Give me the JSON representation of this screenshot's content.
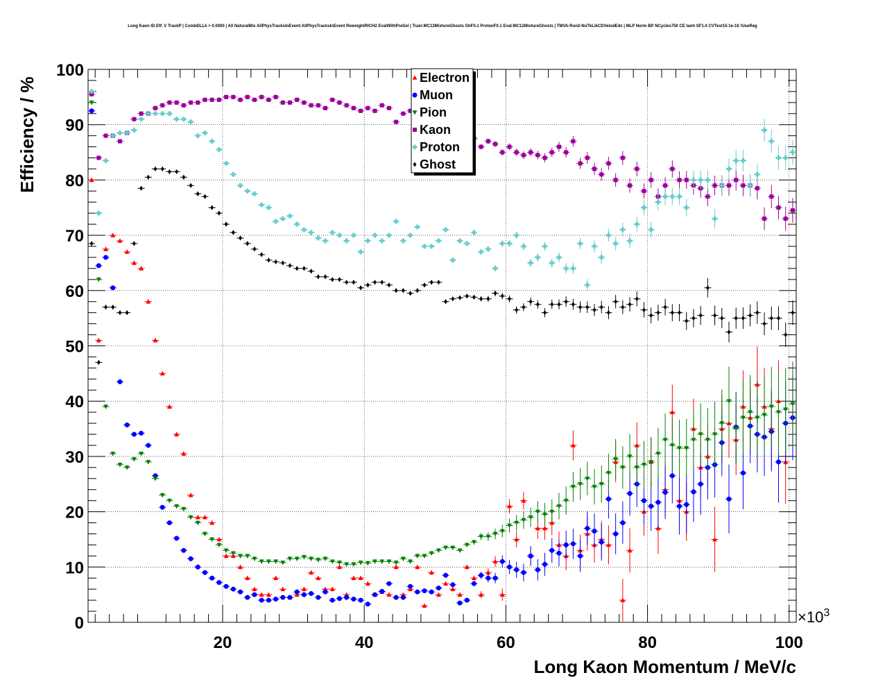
{
  "chart_data": {
    "type": "scatter",
    "title": "Long Kaon ID Eff. V TrackP | CombDLLk > 0.0000 | All NaturalMix AllPhysTracksInEvent:AllPhysTracksInEvent ReweightRICH2 EvalWithPreSel | Train:MC12MixtureGhosts GhF0.1 ProtonF0.1 Eval:MC12MixtureGhosts | TMVA-Run2-NoTkLikCDVelodEdx | MLP Norm BP NCycles750 CE tanh SF1.4 CVTest15:1e-16 !UseReg",
    "xlabel": "Long Kaon Momentum / MeV/c",
    "ylabel": "Efficiency / %",
    "x_multiplier": "×10",
    "x_multiplier_exp": "3",
    "xlim": [
      1,
      101
    ],
    "ylim": [
      0,
      100
    ],
    "xticks": [
      "20",
      "40",
      "60",
      "80",
      "100"
    ],
    "yticks": [
      "0",
      "10",
      "20",
      "30",
      "40",
      "50",
      "60",
      "70",
      "80",
      "90",
      "100"
    ],
    "grid": true,
    "legend_position": "top-center",
    "x_start": 1.5,
    "x_step": 1,
    "series": [
      {
        "name": "Electron",
        "color": "#ff0000",
        "marker": "triangle-up",
        "values": [
          80,
          51,
          67.5,
          70,
          69,
          67,
          65,
          64,
          58,
          51,
          45,
          39,
          34,
          30.5,
          23,
          19,
          19,
          18,
          15,
          12,
          12,
          10,
          8,
          6,
          5,
          5,
          8,
          6,
          4.5,
          5,
          6,
          9,
          8,
          6,
          6,
          10,
          5,
          8,
          8,
          7,
          5,
          5.5,
          5,
          10,
          5,
          6,
          10,
          3,
          9,
          5,
          7,
          6,
          5,
          10,
          8,
          5,
          9,
          11,
          5,
          21,
          15,
          22,
          12,
          17,
          17,
          18,
          14,
          12,
          32,
          13,
          16,
          14,
          15,
          14,
          29,
          4,
          13,
          32,
          20,
          29,
          17,
          24,
          38,
          22,
          20,
          35,
          28,
          30,
          15,
          35,
          36,
          33,
          39,
          37,
          43,
          39,
          35,
          40,
          29
        ]
      },
      {
        "name": "Muon",
        "color": "#0000ff",
        "marker": "circle",
        "values": [
          92.5,
          64.5,
          66,
          60.5,
          43.5,
          35.7,
          34,
          34.2,
          32,
          26.5,
          20.8,
          18,
          15.2,
          13,
          11.5,
          10,
          9,
          8,
          7.2,
          6.5,
          6,
          5.5,
          4.5,
          5,
          4,
          4,
          4.2,
          4.5,
          4.5,
          5.5,
          5,
          5.2,
          4.5,
          5.5,
          4,
          4.3,
          4.5,
          4.2,
          4,
          3.3,
          5,
          5.6,
          7,
          4.5,
          4.5,
          6.5,
          5.5,
          5.7,
          5.5,
          6.2,
          8.5,
          6.8,
          3.5,
          4,
          7,
          8.5,
          8,
          8,
          11,
          10,
          9.5,
          9,
          12,
          9.5,
          10.5,
          13,
          12.5,
          14,
          14.2,
          12,
          17,
          16.5,
          14.5,
          22.3,
          16,
          18,
          23.3,
          25,
          22,
          21,
          21.7,
          23.5,
          26.5,
          21,
          21.3,
          23.6,
          25,
          28,
          28.5,
          32.5,
          22.3,
          35.3,
          27,
          35.5,
          34,
          33.5,
          34.5,
          29,
          36,
          37
        ]
      },
      {
        "name": "Pion",
        "color": "#008000",
        "marker": "triangle-down",
        "values": [
          94,
          62,
          39,
          30.5,
          28.5,
          28,
          29.5,
          30.5,
          29,
          26,
          23,
          22,
          21,
          20.5,
          19,
          18,
          16,
          15,
          14,
          13,
          12.5,
          12,
          12,
          11.5,
          11,
          11,
          11,
          10.8,
          11.5,
          11.5,
          11.8,
          11.5,
          11.3,
          11.5,
          11,
          10.8,
          10.5,
          10.5,
          10.8,
          10.7,
          11,
          11,
          11,
          10.8,
          11.5,
          11,
          12,
          12,
          12.5,
          13,
          13.5,
          13.5,
          13,
          14,
          14.5,
          15.5,
          15.5,
          16,
          16.5,
          17.5,
          18,
          18.5,
          19,
          20,
          19.5,
          20,
          21,
          22,
          24.5,
          25,
          26,
          24.5,
          25,
          27,
          29.5,
          28,
          30,
          28,
          28.5,
          29,
          30.5,
          33,
          32,
          31.5,
          31.5,
          33,
          34,
          33,
          34,
          36,
          40,
          35,
          37,
          38,
          37,
          37.5,
          39,
          38,
          38.5,
          39.5
        ]
      },
      {
        "name": "Kaon",
        "color": "#990099",
        "marker": "square",
        "values": [
          95.5,
          84,
          88,
          88,
          87,
          88.5,
          91,
          92,
          92,
          93,
          93.5,
          94,
          94,
          93.5,
          94,
          94,
          94.5,
          94.5,
          94.5,
          95,
          95,
          94.5,
          95,
          94.5,
          95,
          94.5,
          95,
          94,
          94,
          94.5,
          94,
          93.5,
          93.5,
          93,
          94.5,
          94,
          93.5,
          93,
          92.5,
          93,
          92.5,
          93.5,
          93,
          90.5,
          92,
          92.5,
          93.5,
          93.5,
          90.5,
          88,
          89,
          88,
          88,
          87.5,
          87.5,
          86,
          87,
          86.5,
          85,
          86,
          85,
          84.5,
          85,
          84.5,
          84,
          85,
          86,
          85,
          87,
          83,
          84,
          82,
          81,
          83,
          80,
          84,
          79,
          82,
          78,
          80,
          77,
          79,
          82,
          80,
          80,
          79,
          78.5,
          77,
          79,
          79,
          79,
          80,
          79,
          79,
          78.5,
          73,
          77,
          75,
          73,
          74.5
        ]
      },
      {
        "name": "Proton",
        "color": "#66cccc",
        "marker": "cross",
        "values": [
          96,
          74,
          83.5,
          88,
          88.5,
          88.5,
          89,
          91,
          92,
          92,
          92,
          92,
          91,
          91,
          90.5,
          88,
          88.5,
          87,
          85.5,
          83,
          81,
          79,
          78,
          77.5,
          75.5,
          75,
          72.5,
          73,
          73.5,
          72,
          71,
          70.5,
          69.5,
          69,
          70.5,
          70,
          69,
          70,
          67,
          69,
          70,
          69,
          70,
          72.5,
          69,
          70,
          71.5,
          68,
          68,
          69,
          71,
          65.5,
          69,
          68.5,
          70.5,
          67,
          67.5,
          64,
          68.5,
          68.5,
          70,
          68,
          65,
          66,
          68,
          65,
          66,
          64,
          64,
          68.5,
          61,
          68,
          66,
          70,
          68.5,
          71,
          69,
          72,
          75,
          71,
          76,
          77,
          77,
          77,
          75,
          80,
          80,
          80,
          73,
          79,
          82,
          83.5,
          83.5,
          79,
          81,
          89,
          87,
          84,
          84,
          85
        ]
      },
      {
        "name": "Ghost",
        "color": "#000000",
        "marker": "diamond",
        "values": [
          68.5,
          47,
          57,
          57,
          56,
          56,
          68.5,
          78.5,
          80.5,
          82,
          82,
          81.5,
          81.5,
          80.5,
          79,
          77.5,
          77,
          75,
          74,
          72,
          70.5,
          69.5,
          68.5,
          67.5,
          66.5,
          65.5,
          65.2,
          65,
          64.5,
          64,
          64,
          63.5,
          62.5,
          62.5,
          62,
          62,
          61.5,
          61.5,
          60.5,
          61,
          61.5,
          61.5,
          61,
          60,
          60,
          59.5,
          60,
          61,
          61.5,
          61.5,
          58,
          58.5,
          58.7,
          59,
          58.8,
          58.5,
          58.5,
          59.5,
          59,
          58.5,
          56.5,
          57,
          58,
          57.5,
          56,
          57.5,
          57.5,
          58,
          57.5,
          57,
          57,
          56.5,
          57,
          56,
          58,
          57,
          57.5,
          58.5,
          56.5,
          55.5,
          56,
          57,
          56,
          56,
          54.5,
          55,
          55.5,
          60.5,
          55.5,
          55,
          52.5,
          55,
          55,
          55.5,
          56,
          54,
          55,
          55,
          52,
          56
        ]
      }
    ]
  }
}
